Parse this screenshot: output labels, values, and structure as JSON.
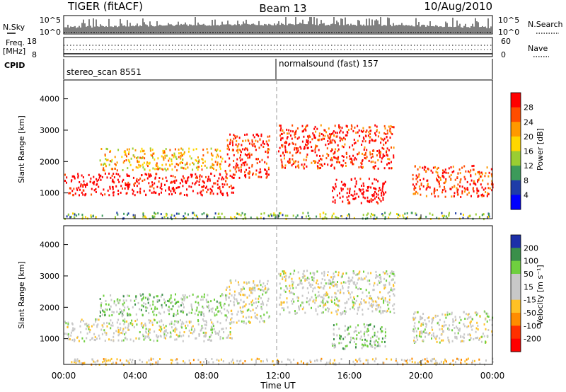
{
  "header": {
    "title": "TIGER (fitACF)",
    "beam": "Beam 13",
    "date": "10/Aug/2010"
  },
  "top_panels": {
    "nsky_label": "N.Sky",
    "nsky_ticks": [
      "10^5",
      "10^0"
    ],
    "nsearch_label": "N.Search",
    "nsearch_ticks": [
      "10^5",
      "10^0"
    ],
    "freq_label": "Freq.",
    "freq_unit": "[MHz]",
    "freq_ticks": [
      "18",
      "8"
    ],
    "nave_label": "Nave",
    "nave_ticks": [
      "60",
      "0"
    ],
    "cpid_label": "CPID",
    "cpid_segments": [
      "stereo_scan 8551",
      "normalsound (fast) 157"
    ]
  },
  "chart_data": [
    {
      "type": "heatmap",
      "title": "",
      "xlabel": "Time UT",
      "ylabel": "Slant Range [km]",
      "x_ticks": [
        "00:00",
        "04:00",
        "08:00",
        "12:00",
        "16:00",
        "20:00",
        "00:00"
      ],
      "y_ticks": [
        1000,
        2000,
        3000,
        4000
      ],
      "xlim_hours": [
        0,
        24
      ],
      "ylim_km": [
        180,
        4600
      ],
      "colorbar": {
        "label": "Power [dB]",
        "ticks": [
          "28",
          "24",
          "20",
          "16",
          "12",
          "8",
          "4"
        ],
        "colors": [
          "#ff0000",
          "#ff4d00",
          "#ff9900",
          "#ffd700",
          "#9acd32",
          "#3c9a5a",
          "#1e3ca8",
          "#0000ff"
        ]
      },
      "echo_bands": [
        {
          "t_start": 0.0,
          "t_end": 9.5,
          "range_start": 950,
          "range_end": 1650,
          "level": "28"
        },
        {
          "t_start": 2.0,
          "t_end": 9.0,
          "range_start": 1750,
          "range_end": 2450,
          "level": "16"
        },
        {
          "t_start": 9.0,
          "t_end": 11.5,
          "range_start": 1500,
          "range_end": 2900,
          "level": "24"
        },
        {
          "t_start": 12.0,
          "t_end": 18.5,
          "range_start": 1800,
          "range_end": 3200,
          "level": "24"
        },
        {
          "t_start": 15.0,
          "t_end": 18.0,
          "range_start": 700,
          "range_end": 1500,
          "level": "28"
        },
        {
          "t_start": 19.5,
          "t_end": 24.0,
          "range_start": 900,
          "range_end": 1900,
          "level": "24"
        },
        {
          "t_start": 0.0,
          "t_end": 24.0,
          "range_start": 200,
          "range_end": 400,
          "level": "8"
        }
      ]
    },
    {
      "type": "heatmap",
      "title": "",
      "xlabel": "Time UT",
      "ylabel": "Slant Range [km]",
      "x_ticks": [
        "00:00",
        "04:00",
        "08:00",
        "12:00",
        "16:00",
        "20:00",
        "00:00"
      ],
      "y_ticks": [
        1000,
        2000,
        3000,
        4000
      ],
      "xlim_hours": [
        0,
        24
      ],
      "ylim_km": [
        180,
        4600
      ],
      "colorbar": {
        "label": "Velocity [m s⁻¹]",
        "ticks": [
          "200",
          "100",
          "50",
          "15",
          "-15",
          "-50",
          "-100",
          "-200"
        ],
        "colors": [
          "#1c2fa8",
          "#3a8f4a",
          "#6fcf3f",
          "#c8c8c8",
          "#c8c8c8",
          "#ffc125",
          "#ff8c00",
          "#ff3000",
          "#ff0000"
        ]
      },
      "echo_bands": [
        {
          "t_start": 0.0,
          "t_end": 9.5,
          "range_start": 950,
          "range_end": 1650,
          "level": "-15"
        },
        {
          "t_start": 2.0,
          "t_end": 9.0,
          "range_start": 1750,
          "range_end": 2450,
          "level": "15"
        },
        {
          "t_start": 9.0,
          "t_end": 11.5,
          "range_start": 1500,
          "range_end": 2900,
          "level": "-15"
        },
        {
          "t_start": 12.0,
          "t_end": 18.5,
          "range_start": 1800,
          "range_end": 3200,
          "level": "-15"
        },
        {
          "t_start": 15.0,
          "t_end": 18.0,
          "range_start": 700,
          "range_end": 1500,
          "level": "15"
        },
        {
          "t_start": 19.5,
          "t_end": 24.0,
          "range_start": 900,
          "range_end": 1900,
          "level": "-15"
        },
        {
          "t_start": 0.0,
          "t_end": 24.0,
          "range_start": 200,
          "range_end": 400,
          "level": "-50"
        }
      ]
    }
  ]
}
